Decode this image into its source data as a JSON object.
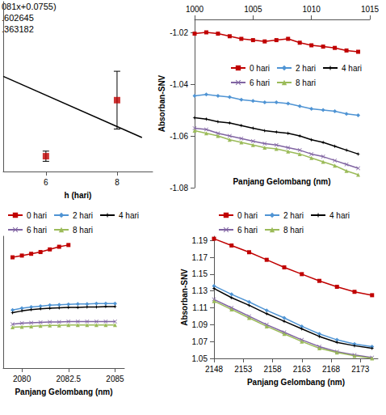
{
  "chart_data": [
    {
      "type": "scatter",
      "annotations": [
        "081x+0.0755)",
        ".602645",
        ".363182"
      ],
      "x_label": "h (hari)",
      "xlim": [
        4.8,
        9
      ],
      "xticks": [
        6,
        8
      ],
      "ylim": [
        0,
        1
      ],
      "tick_labels": "x",
      "grid": false,
      "series": [
        {
          "type": "scatter",
          "color": "#c00000",
          "marker": "square",
          "x": [
            6,
            8
          ],
          "values": [
            0.09,
            0.42
          ],
          "error": [
            0.03,
            0.17
          ]
        },
        {
          "type": "line",
          "color": "#000000",
          "x": [
            4.8,
            8.7
          ],
          "values": [
            0.56,
            0.2
          ]
        }
      ]
    },
    {
      "type": "line",
      "x_label": "Panjang Gelombang (nm)",
      "y_label": "Absorban-SNV",
      "xlim": [
        1000,
        1015
      ],
      "xticks": [
        1000,
        1005,
        1010,
        1015
      ],
      "ylim": [
        -1.08,
        -1.015
      ],
      "yticks": [
        -1.08,
        -1.06,
        -1.04,
        -1.02
      ],
      "grid": false,
      "legend": "upper right",
      "x": [
        1000,
        1001,
        1002,
        1003,
        1004,
        1005,
        1006,
        1007,
        1008,
        1009,
        1010,
        1011,
        1012,
        1013,
        1014
      ],
      "series": [
        {
          "name": "0 hari",
          "color": "#c00000",
          "marker": "square",
          "values": [
            -1.0205,
            -1.02,
            -1.0205,
            -1.0215,
            -1.0225,
            -1.023,
            -1.0235,
            -1.023,
            -1.0225,
            -1.024,
            -1.025,
            -1.0255,
            -1.026,
            -1.027,
            -1.0275
          ]
        },
        {
          "name": "2 hari",
          "color": "#4f94d4",
          "marker": "diamond",
          "values": [
            -1.0445,
            -1.044,
            -1.0445,
            -1.045,
            -1.046,
            -1.0465,
            -1.047,
            -1.047,
            -1.0475,
            -1.0485,
            -1.0495,
            -1.05,
            -1.0505,
            -1.0515,
            -1.052
          ]
        },
        {
          "name": "4 hari",
          "color": "#000000",
          "marker": "star",
          "values": [
            -1.053,
            -1.0535,
            -1.0545,
            -1.055,
            -1.056,
            -1.057,
            -1.058,
            -1.0585,
            -1.059,
            -1.06,
            -1.0615,
            -1.0625,
            -1.064,
            -1.0655,
            -1.067
          ]
        },
        {
          "name": "6 hari",
          "color": "#8064a2",
          "marker": "cross",
          "values": [
            -1.057,
            -1.0575,
            -1.059,
            -1.06,
            -1.061,
            -1.062,
            -1.063,
            -1.0635,
            -1.0645,
            -1.0655,
            -1.067,
            -1.068,
            -1.0695,
            -1.071,
            -1.0725
          ]
        },
        {
          "name": "8 hari",
          "color": "#9bbb59",
          "marker": "triangle",
          "values": [
            -1.058,
            -1.059,
            -1.06,
            -1.0615,
            -1.0625,
            -1.0635,
            -1.0645,
            -1.065,
            -1.066,
            -1.067,
            -1.0685,
            -1.07,
            -1.0715,
            -1.0735,
            -1.075
          ]
        }
      ]
    },
    {
      "type": "line",
      "x_label": "Panjang Gelombang (nm)",
      "xlim": [
        2079,
        2085.5
      ],
      "xticks": [
        2080,
        2082.5,
        2085
      ],
      "ylim": [
        1.05,
        1.2
      ],
      "tick_labels": "x",
      "grid": false,
      "legend": "top",
      "x": [
        2079.5,
        2080,
        2080.5,
        2081,
        2081.5,
        2082,
        2082.5,
        2083,
        2083.5,
        2084,
        2084.5,
        2085
      ],
      "series": [
        {
          "name": "0 hari",
          "color": "#c00000",
          "marker": "square",
          "values": [
            1.176,
            1.178,
            1.18,
            1.182,
            1.185,
            1.188,
            1.19,
            null,
            null,
            null,
            null,
            null
          ]
        },
        {
          "name": "2 hari",
          "color": "#4f94d4",
          "marker": "diamond",
          "values": [
            1.116,
            1.118,
            1.1195,
            1.1205,
            1.1215,
            1.122,
            1.1225,
            1.123,
            1.123,
            1.1235,
            1.1235,
            1.1235
          ]
        },
        {
          "name": "4 hari",
          "color": "#000000",
          "marker": "star",
          "values": [
            1.113,
            1.115,
            1.1165,
            1.1175,
            1.118,
            1.1185,
            1.119,
            1.119,
            1.1195,
            1.1195,
            1.12,
            1.12
          ]
        },
        {
          "name": "6 hari",
          "color": "#8064a2",
          "marker": "cross",
          "values": [
            1.1,
            1.101,
            1.1015,
            1.102,
            1.1025,
            1.1025,
            1.103,
            1.103,
            1.103,
            1.103,
            1.103,
            1.103
          ]
        },
        {
          "name": "8 hari",
          "color": "#9bbb59",
          "marker": "triangle",
          "values": [
            1.0965,
            1.097,
            1.0975,
            1.098,
            1.0985,
            1.0985,
            1.099,
            1.099,
            1.099,
            1.099,
            1.099,
            1.099
          ]
        }
      ]
    },
    {
      "type": "line",
      "x_label": "Panjang Gelombang (nm)",
      "y_label": "Absorban-SNV",
      "xlim": [
        2148,
        2176
      ],
      "xticks": [
        2148,
        2153,
        2158,
        2163,
        2168,
        2173
      ],
      "ylim": [
        1.05,
        1.195
      ],
      "yticks": [
        1.05,
        1.07,
        1.09,
        1.11,
        1.13,
        1.15,
        1.17,
        1.19
      ],
      "grid": false,
      "legend": "top",
      "x": [
        2148,
        2151,
        2154,
        2157,
        2160,
        2163,
        2166,
        2169,
        2172,
        2175
      ],
      "series": [
        {
          "name": "0 hari",
          "color": "#c00000",
          "marker": "square",
          "values": [
            1.192,
            1.184,
            1.176,
            1.167,
            1.158,
            1.15,
            1.142,
            1.135,
            1.129,
            1.125
          ]
        },
        {
          "name": "2 hari",
          "color": "#4f94d4",
          "marker": "diamond",
          "values": [
            1.136,
            1.126,
            1.117,
            1.107,
            1.098,
            1.088,
            1.079,
            1.072,
            1.067,
            1.064
          ]
        },
        {
          "name": "4 hari",
          "color": "#000000",
          "marker": "star",
          "values": [
            1.133,
            1.122,
            1.113,
            1.103,
            1.094,
            1.085,
            1.076,
            1.069,
            1.065,
            1.062
          ]
        },
        {
          "name": "6 hari",
          "color": "#8064a2",
          "marker": "cross",
          "values": [
            1.12,
            1.11,
            1.1,
            1.09,
            1.081,
            1.072,
            1.064,
            1.058,
            1.054,
            1.051
          ]
        },
        {
          "name": "8 hari",
          "color": "#9bbb59",
          "marker": "triangle",
          "values": [
            1.118,
            1.108,
            1.098,
            1.088,
            1.079,
            1.07,
            1.062,
            1.057,
            1.053,
            1.05
          ]
        }
      ]
    }
  ]
}
